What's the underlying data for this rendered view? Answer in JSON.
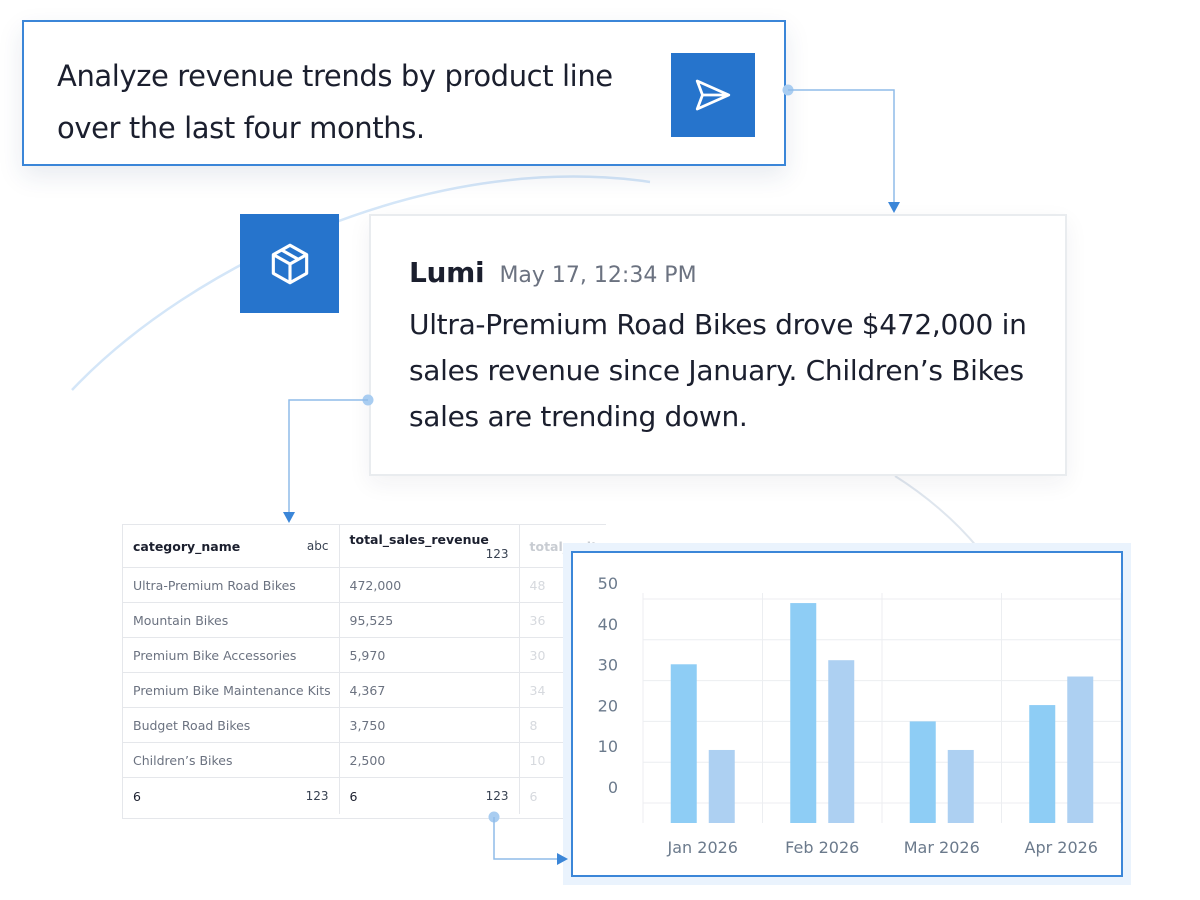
{
  "prompt": {
    "text": "Analyze revenue trends by product line over the last four months.",
    "send_icon": "send-icon"
  },
  "assistant": {
    "avatar_icon": "cube-icon",
    "name": "Lumi",
    "timestamp": "May 17, 12:34 PM",
    "message": "Ultra-Premium Road Bikes drove $472,000 in sales revenue since January.  Children’s Bikes sales are trending down."
  },
  "table": {
    "columns": [
      {
        "name": "category_name",
        "type": "abc"
      },
      {
        "name": "total_sales_revenue",
        "type": "123"
      },
      {
        "name": "total_units_sc",
        "type": ""
      }
    ],
    "rows": [
      [
        "Ultra-Premium Road Bikes",
        "472,000",
        "48"
      ],
      [
        "Mountain Bikes",
        "95,525",
        "36"
      ],
      [
        "Premium Bike Accessories",
        "5,970",
        "30"
      ],
      [
        "Premium Bike Maintenance Kits",
        "4,367",
        "34"
      ],
      [
        "Budget Road Bikes",
        "3,750",
        "8"
      ],
      [
        "Children’s Bikes",
        "2,500",
        "10"
      ]
    ],
    "footer": [
      {
        "value": "6",
        "type": "123"
      },
      {
        "value": "6",
        "type": "123"
      },
      {
        "value": "6",
        "type": ""
      }
    ]
  },
  "chart_data": {
    "type": "bar",
    "categories": [
      "Jan 2026",
      "Feb 2026",
      "Mar 2026",
      "Apr 2026"
    ],
    "series": [
      {
        "values": [
          34,
          49,
          20,
          24
        ]
      },
      {
        "values": [
          13,
          35,
          13,
          31
        ]
      }
    ],
    "ylim": [
      0,
      50
    ],
    "yticks": [
      "0",
      "10",
      "20",
      "30",
      "40",
      "50"
    ],
    "grid": true,
    "colors": [
      "#8ecdf5",
      "#add0f2"
    ]
  },
  "colors": {
    "accent": "#2674cc",
    "connector": "#3b86d8"
  }
}
